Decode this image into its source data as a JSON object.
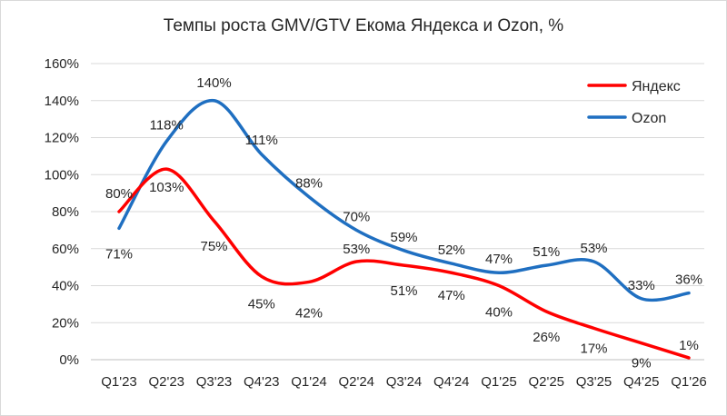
{
  "chart_data": {
    "type": "line",
    "title": "Темпы роста GMV/GTV Екома Яндекса и Ozon, %",
    "categories": [
      "Q1'23",
      "Q2'23",
      "Q3'23",
      "Q4'23",
      "Q1'24",
      "Q2'24",
      "Q3'24",
      "Q4'24",
      "Q1'25",
      "Q2'25",
      "Q3'25",
      "Q4'25",
      "Q1'26"
    ],
    "ylim": [
      0,
      160
    ],
    "yticks": [
      0,
      20,
      40,
      60,
      80,
      100,
      120,
      140,
      160
    ],
    "ytick_labels": [
      "0%",
      "20%",
      "40%",
      "60%",
      "80%",
      "100%",
      "120%",
      "140%",
      "160%"
    ],
    "grid": true,
    "legend_position": "top-right",
    "series": [
      {
        "name": "Яндекс",
        "color": "#ff0000",
        "values": [
          80,
          103,
          75,
          45,
          42,
          53,
          51,
          47,
          40,
          26,
          17,
          9,
          1
        ],
        "labels": [
          "80%",
          "103%",
          "75%",
          "45%",
          "42%",
          "53%",
          "51%",
          "47%",
          "40%",
          "26%",
          "17%",
          "9%",
          "1%"
        ]
      },
      {
        "name": "Ozon",
        "color": "#1f6fc1",
        "values": [
          71,
          118,
          140,
          111,
          88,
          70,
          59,
          52,
          47,
          51,
          53,
          33,
          36
        ],
        "labels": [
          "71%",
          "118%",
          "140%",
          "111%",
          "88%",
          "70%",
          "59%",
          "52%",
          "47%",
          "51%",
          "53%",
          "33%",
          "36%"
        ]
      }
    ]
  }
}
